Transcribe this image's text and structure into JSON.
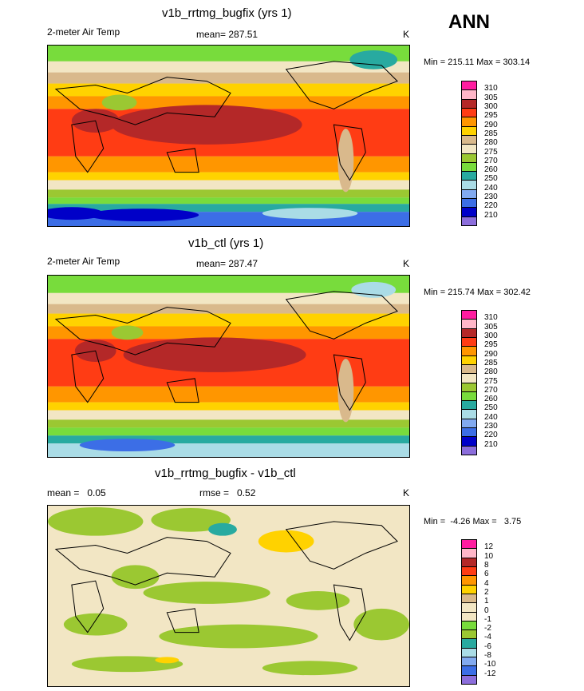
{
  "season": "ANN",
  "panels": [
    {
      "title": "v1b_rrtmg_bugfix (yrs 1)",
      "left_label": "2-meter Air Temp",
      "mean_label": "mean= 287.51",
      "units": "K",
      "minmax": "Min = 215.11 Max = 303.14"
    },
    {
      "title": "v1b_ctl (yrs 1)",
      "left_label": "2-meter Air Temp",
      "mean_label": "mean= 287.47",
      "units": "K",
      "minmax": "Min = 215.74 Max = 302.42"
    },
    {
      "title": "v1b_rrtmg_bugfix - v1b_ctl",
      "left_label": "mean =   0.05",
      "mean_label": "rmse =   0.52",
      "units": "K",
      "minmax": "Min =  -4.26 Max =   3.75"
    }
  ],
  "abs_colorbar": {
    "labels": [
      "310",
      "305",
      "300",
      "295",
      "290",
      "285",
      "280",
      "275",
      "270",
      "260",
      "250",
      "240",
      "230",
      "220",
      "210"
    ],
    "colors": [
      "#ff1ca0",
      "#ffb6c8",
      "#b42828",
      "#ff3c14",
      "#ff9600",
      "#ffd200",
      "#d9b98c",
      "#f2e6c4",
      "#9bc832",
      "#78dc3c",
      "#28aaa0",
      "#aadce6",
      "#82aaf0",
      "#3c6ee6",
      "#0000c8",
      "#8c6edc"
    ]
  },
  "diff_colorbar": {
    "labels": [
      "12",
      "10",
      "8",
      "6",
      "4",
      "2",
      "1",
      "0",
      "-1",
      "-2",
      "-4",
      "-6",
      "-8",
      "-10",
      "-12"
    ],
    "colors": [
      "#ff1ca0",
      "#ffb6c8",
      "#b42828",
      "#ff3c14",
      "#ff9600",
      "#ffd200",
      "#d9b98c",
      "#f2e6c4",
      "#f2e6c4",
      "#78dc3c",
      "#9bc832",
      "#28aaa0",
      "#aadce6",
      "#82aaf0",
      "#3c6ee6",
      "#8c6edc"
    ]
  }
}
